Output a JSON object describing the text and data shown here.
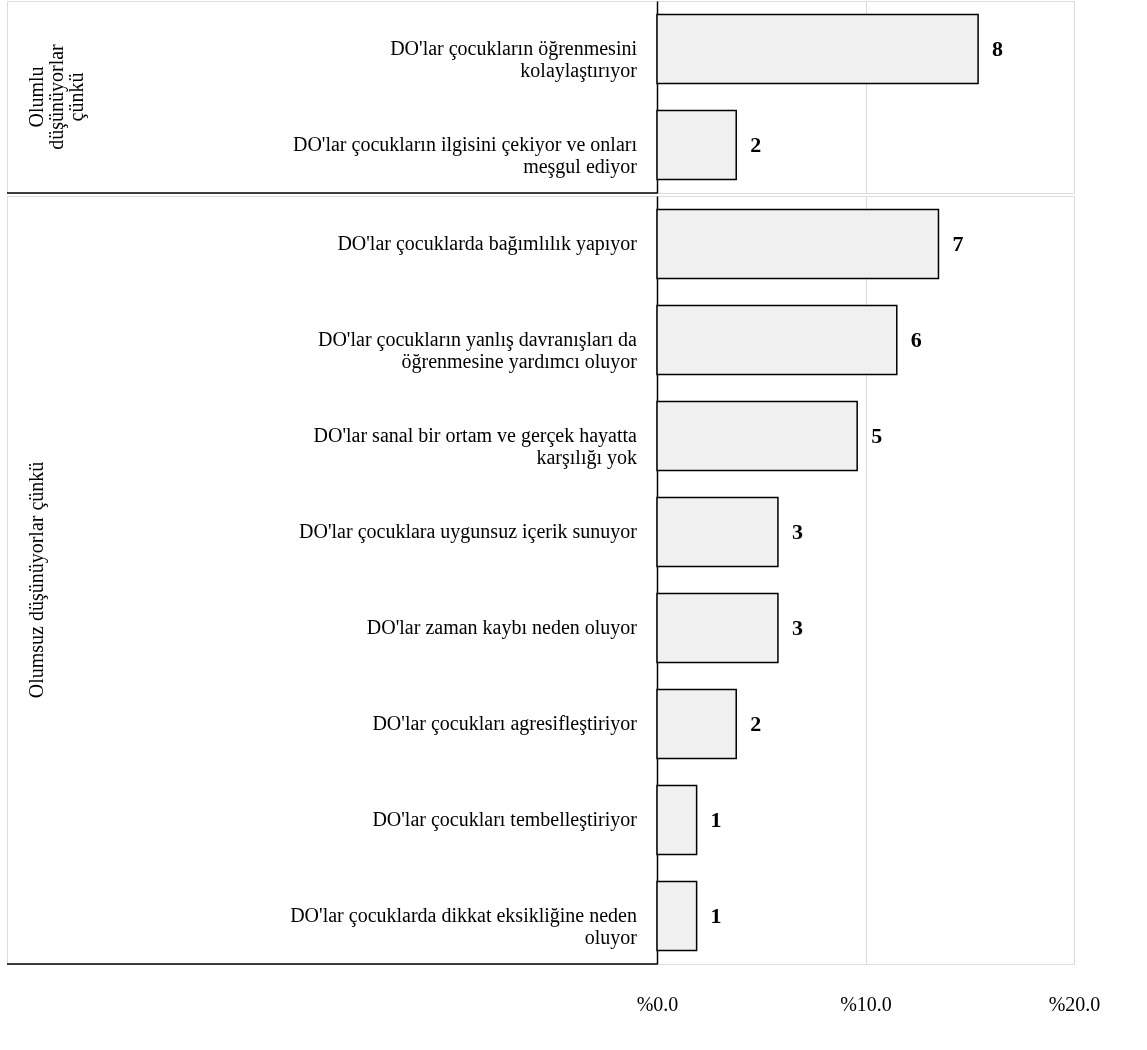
{
  "chart_data": [
    {
      "type": "bar",
      "orientation": "horizontal",
      "categories": [
        "DO'lar çocukların öğrenmesini kolaylaştırıyor",
        "DO'lar çocukların ilgisini çekiyor ve onları meşgul ediyor"
      ],
      "values": [
        15.4,
        3.8
      ],
      "color": "#f0f0f0",
      "xlim": [
        0,
        20
      ],
      "xticks": [
        {
          "value": 0,
          "label": null
        },
        {
          "value": 10,
          "label": null
        },
        {
          "value": 20,
          "label": null
        }
      ],
      "tick_labels": "y",
      "grid": "x",
      "annotations": [
        "Olumlu düşünüyorlar çünkü",
        {
          "text": "8",
          "x": 15.4,
          "y": "DO'lar çocukların öğrenmesini kolaylaştırıyor"
        },
        {
          "text": "2",
          "x": 3.8,
          "y": "DO'lar çocukların ilgisini çekiyor ve onları meşgul ediyor"
        }
      ]
    },
    {
      "type": "bar",
      "orientation": "horizontal",
      "categories": [
        "DO'lar çocuklarda bağımlılık yapıyor",
        "DO'lar çocukların yanlış davranışları da öğrenmesine yardımcı oluyor",
        "DO'lar sanal bir ortam ve gerçek hayatta karşılığı yok",
        "DO'lar çocuklara uygunsuz içerik sunuyor",
        "DO'lar zaman kaybı neden oluyor",
        "DO'lar çocukları agresifleştiriyor",
        "DO'lar çocukları tembelleştiriyor",
        "DO'lar çocuklarda dikkat eksikliğine neden oluyor"
      ],
      "values": [
        13.5,
        11.5,
        9.6,
        5.8,
        5.8,
        3.8,
        1.9,
        1.9
      ],
      "color": "#f0f0f0",
      "xlim": [
        0,
        20
      ],
      "xticks": [
        {
          "value": 0,
          "label": "%0.0"
        },
        {
          "value": 10,
          "label": "%10.0"
        },
        {
          "value": 20,
          "label": "%20.0"
        }
      ],
      "grid": "x",
      "annotations": [
        "Olumsuz düşünüyorlar çünkü",
        {
          "text": "7",
          "x": 13.5,
          "y": "DO'lar çocuklarda bağımlılık yapıyor"
        },
        {
          "text": "6",
          "x": 11.5,
          "y": "DO'lar çocukların yanlış davranışları da öğrenmesine yardımcı oluyor"
        },
        {
          "text": "5",
          "x": 9.6,
          "y": "DO'lar sanal bir ortam ve gerçek hayatta karşılığı yok"
        },
        {
          "text": "3",
          "x": 5.8,
          "y": "DO'lar çocuklara uygunsuz içerik sunuyor"
        },
        {
          "text": "3",
          "x": 5.8,
          "y": "DO'lar zaman kaybı neden oluyor"
        },
        {
          "text": "2",
          "x": 3.8,
          "y": "DO'lar çocukları agresifleştiriyor"
        },
        {
          "text": "1",
          "x": 1.9,
          "y": "DO'lar çocukları tembelleştiriyor"
        },
        {
          "text": "1",
          "x": 1.9,
          "y": "DO'lar çocuklarda dikkat eksikliğine neden oluyor"
        }
      ]
    }
  ]
}
